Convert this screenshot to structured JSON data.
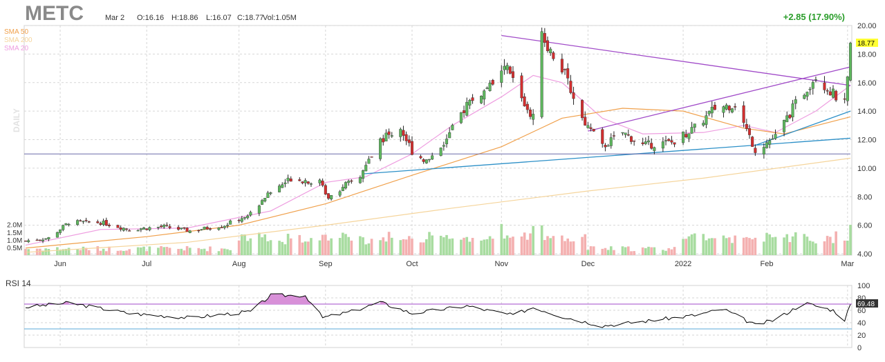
{
  "header": {
    "ticker": "METC",
    "date": "Mar 2",
    "ohlcv": {
      "open": "O:16.16",
      "high": "H:18.86",
      "low": "L:16.07",
      "close": "C:18.77",
      "volume": "Vol:1.05M"
    },
    "change": "+2.85 (17.90%)",
    "timeframe": "DAILY"
  },
  "legend": {
    "sma50": "SMA 50",
    "sma200": "SMA 200",
    "sma20": "SMA 20"
  },
  "colors": {
    "up": "#5fb85f",
    "down": "#d32f2f",
    "sma50": "#f0a04b",
    "sma200": "#f5d49a",
    "sma20": "#ee9de0",
    "trend": "#a04ac8",
    "support": "#2b8fc7",
    "hline": "#6a6aa8",
    "volUp": "#a8dca0",
    "volDown": "#f4b0b0",
    "rsi": "#000000",
    "rsiFill": "#d890d8",
    "accent": "#2a9d2a",
    "priceTag": "#ffff33"
  },
  "chart_data": [
    {
      "type": "candlestick",
      "price_axis": {
        "min": 4,
        "max": 20,
        "ticks": [
          4,
          6,
          8,
          10,
          12,
          14,
          16,
          18,
          20
        ],
        "tick_labels": [
          "4.00",
          "6.00",
          "8.00",
          "10.00",
          "12.00",
          "14.00",
          "16.00",
          "18.00",
          "20.00"
        ]
      },
      "volume_axis": {
        "ticks": [
          0.5,
          1.0,
          1.5,
          2.0
        ],
        "tick_labels": [
          "0.5M",
          "1.0M",
          "1.5M",
          "2.0M"
        ],
        "max": 3.0
      },
      "x_labels": [
        "Jun",
        "Jul",
        "Aug",
        "Sep",
        "Oct",
        "Nov",
        "Dec",
        "2022",
        "Feb",
        "Mar"
      ],
      "x_label_dates": [
        "2021-06-01",
        "2021-07-01",
        "2021-08-02",
        "2021-09-01",
        "2021-10-01",
        "2021-11-01",
        "2021-12-01",
        "2022-01-03",
        "2022-02-01",
        "2022-03-01"
      ],
      "last_price_label": "18.77",
      "anchors": [
        [
          "2021-05-20",
          4.9
        ],
        [
          "2021-05-28",
          5.1
        ],
        [
          "2021-06-04",
          6.2
        ],
        [
          "2021-06-15",
          6.2
        ],
        [
          "2021-06-25",
          5.7
        ],
        [
          "2021-07-07",
          5.9
        ],
        [
          "2021-07-16",
          5.6
        ],
        [
          "2021-07-28",
          6.0
        ],
        [
          "2021-08-06",
          6.8
        ],
        [
          "2021-08-11",
          8.0
        ],
        [
          "2021-08-20",
          9.3
        ],
        [
          "2021-08-30",
          9.0
        ],
        [
          "2021-09-02",
          8.0
        ],
        [
          "2021-09-07",
          8.7
        ],
        [
          "2021-09-13",
          9.4
        ],
        [
          "2021-09-20",
          12.0
        ],
        [
          "2021-09-27",
          12.8
        ],
        [
          "2021-10-01",
          11.2
        ],
        [
          "2021-10-06",
          10.5
        ],
        [
          "2021-10-13",
          12.0
        ],
        [
          "2021-10-20",
          14.5
        ],
        [
          "2021-10-27",
          15.5
        ],
        [
          "2021-11-03",
          17.0
        ],
        [
          "2021-11-09",
          14.5
        ],
        [
          "2021-11-12",
          13.5
        ],
        [
          "2021-11-15",
          19.3
        ],
        [
          "2021-11-22",
          17.0
        ],
        [
          "2021-11-29",
          13.5
        ],
        [
          "2021-12-06",
          11.5
        ],
        [
          "2021-12-13",
          12.5
        ],
        [
          "2021-12-20",
          11.6
        ],
        [
          "2021-12-30",
          11.8
        ],
        [
          "2022-01-07",
          12.8
        ],
        [
          "2022-01-14",
          14.2
        ],
        [
          "2022-01-21",
          14.5
        ],
        [
          "2022-01-28",
          11.3
        ],
        [
          "2022-02-04",
          12.2
        ],
        [
          "2022-02-11",
          14.5
        ],
        [
          "2022-02-18",
          16.5
        ],
        [
          "2022-02-24",
          15.2
        ],
        [
          "2022-02-28",
          14.5
        ],
        [
          "2022-03-01",
          16.16
        ],
        [
          "2022-03-02",
          18.77
        ]
      ],
      "sma_series": [
        {
          "name": "SMA 20",
          "points": [
            [
              "2021-05-20",
              4.6
            ],
            [
              "2021-06-15",
              5.7
            ],
            [
              "2021-07-15",
              5.8
            ],
            [
              "2021-08-13",
              7.0
            ],
            [
              "2021-09-01",
              9.0
            ],
            [
              "2021-09-15",
              9.4
            ],
            [
              "2021-10-01",
              11.0
            ],
            [
              "2021-10-15",
              13.0
            ],
            [
              "2021-11-01",
              15.0
            ],
            [
              "2021-11-12",
              16.5
            ],
            [
              "2021-11-22",
              16.0
            ],
            [
              "2021-12-06",
              13.5
            ],
            [
              "2021-12-20",
              12.4
            ],
            [
              "2022-01-10",
              12.5
            ],
            [
              "2022-01-24",
              13.0
            ],
            [
              "2022-02-04",
              12.5
            ],
            [
              "2022-02-18",
              14.0
            ],
            [
              "2022-03-02",
              15.8
            ]
          ]
        },
        {
          "name": "SMA 50",
          "points": [
            [
              "2021-05-20",
              4.4
            ],
            [
              "2021-07-01",
              5.2
            ],
            [
              "2021-08-02",
              6.0
            ],
            [
              "2021-09-01",
              7.5
            ],
            [
              "2021-10-01",
              9.5
            ],
            [
              "2021-11-01",
              11.5
            ],
            [
              "2021-11-22",
              13.5
            ],
            [
              "2021-12-13",
              14.2
            ],
            [
              "2022-01-03",
              14.0
            ],
            [
              "2022-01-24",
              12.8
            ],
            [
              "2022-02-07",
              12.4
            ],
            [
              "2022-03-02",
              13.6
            ]
          ]
        },
        {
          "name": "SMA 200",
          "points": [
            [
              "2021-05-20",
              4.1
            ],
            [
              "2021-07-15",
              4.8
            ],
            [
              "2021-09-01",
              6.0
            ],
            [
              "2021-10-15",
              7.2
            ],
            [
              "2021-12-01",
              8.4
            ],
            [
              "2022-01-10",
              9.3
            ],
            [
              "2022-03-02",
              10.7
            ]
          ]
        }
      ],
      "trendlines": [
        {
          "kind": "resistance-top",
          "from": [
            "2021-11-01",
            19.3
          ],
          "to": [
            "2022-03-02",
            15.8
          ]
        },
        {
          "kind": "channel-upper",
          "from": [
            "2021-12-01",
            12.6
          ],
          "to": [
            "2022-03-02",
            17.1
          ]
        },
        {
          "kind": "support",
          "from": [
            "2021-09-14",
            9.6
          ],
          "to": [
            "2022-03-02",
            12.1
          ]
        },
        {
          "kind": "support-steep",
          "from": [
            "2022-01-28",
            11.6
          ],
          "to": [
            "2022-03-02",
            14.0
          ]
        },
        {
          "kind": "horizontal",
          "from": [
            "2021-05-20",
            11.0
          ],
          "to": [
            "2022-03-02",
            11.0
          ]
        }
      ]
    },
    {
      "type": "line",
      "title": "RSI 14",
      "ylim": [
        0,
        100
      ],
      "ticks": [
        0,
        20,
        40,
        60,
        80,
        100
      ],
      "overbought": 70,
      "oversold": 30,
      "last_value_label": "69.48",
      "anchors": [
        [
          "2021-05-20",
          65
        ],
        [
          "2021-06-04",
          72
        ],
        [
          "2021-06-25",
          55
        ],
        [
          "2021-07-16",
          48
        ],
        [
          "2021-08-06",
          58
        ],
        [
          "2021-08-13",
          84
        ],
        [
          "2021-08-25",
          84
        ],
        [
          "2021-08-31",
          48
        ],
        [
          "2021-09-10",
          58
        ],
        [
          "2021-09-20",
          73
        ],
        [
          "2021-10-01",
          55
        ],
        [
          "2021-10-20",
          67
        ],
        [
          "2021-10-27",
          60
        ],
        [
          "2021-11-05",
          52
        ],
        [
          "2021-11-12",
          65
        ],
        [
          "2021-11-22",
          50
        ],
        [
          "2021-12-06",
          35
        ],
        [
          "2021-12-20",
          42
        ],
        [
          "2022-01-07",
          52
        ],
        [
          "2022-01-17",
          62
        ],
        [
          "2022-01-28",
          36
        ],
        [
          "2022-02-04",
          45
        ],
        [
          "2022-02-14",
          72
        ],
        [
          "2022-02-24",
          60
        ],
        [
          "2022-02-28",
          45
        ],
        [
          "2022-03-02",
          69.48
        ]
      ]
    }
  ]
}
